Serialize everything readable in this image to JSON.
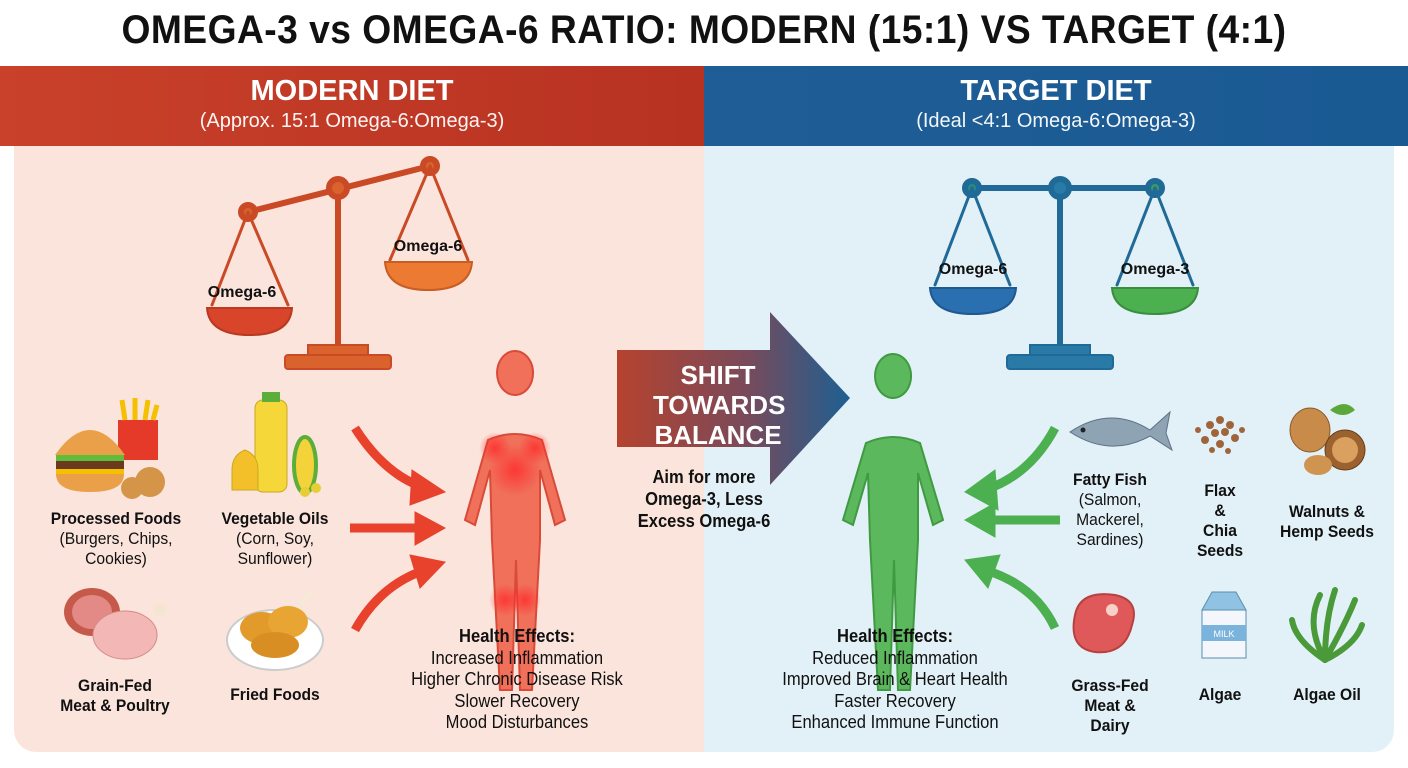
{
  "title": "OMEGA-3 vs OMEGA-6 RATIO: MODERN (15:1) VS TARGET (4:1)",
  "modern": {
    "heading": "MODERN DIET",
    "subheading": "(Approx. 15:1 Omega-6:Omega-3)",
    "color": "#c0392b",
    "scale_left_label": "Omega-6",
    "scale_right_label": "Omega-6",
    "foods": [
      {
        "name": "Processed Foods",
        "detail": "(Burgers, Chips, Cookies)",
        "icon": "burger-fries-icon"
      },
      {
        "name": "Vegetable Oils",
        "detail": "(Corn, Soy, Sunflower)",
        "icon": "oil-bottle-corn-icon"
      },
      {
        "name": "Grain-Fed Meat & Poultry",
        "detail": "",
        "icon": "ham-chicken-icon"
      },
      {
        "name": "Fried Foods",
        "detail": "",
        "icon": "fried-chicken-icon"
      }
    ],
    "effects_title": "Health Effects:",
    "effects": [
      "Increased Inflammation",
      "Higher Chronic Disease Risk",
      "Slower Recovery",
      "Mood Disturbances"
    ]
  },
  "shift": {
    "label": "SHIFT TOWARDS BALANCE",
    "note": "Aim for more Omega-3, Less Excess Omega-6"
  },
  "target": {
    "heading": "TARGET DIET",
    "subheading": "(Ideal <4:1 Omega-6:Omega-3)",
    "color": "#1f5d96",
    "scale_left_label": "Omega-6",
    "scale_right_label": "Omega-3",
    "foods": [
      {
        "name": "Fatty Fish",
        "detail": "(Salmon, Mackerel, Sardines)",
        "icon": "fish-icon"
      },
      {
        "name": "Flax & Chia Seeds",
        "detail": "",
        "icon": "seeds-icon"
      },
      {
        "name": "Walnuts & Hemp Seeds",
        "detail": "",
        "icon": "walnut-icon"
      },
      {
        "name": "Grass-Fed Meat & Dairy",
        "detail": "",
        "icon": "steak-icon"
      },
      {
        "name": "Algae",
        "detail": "",
        "icon": "milk-carton-icon",
        "carton_text": "MILK"
      },
      {
        "name": "Algae Oil",
        "detail": "",
        "icon": "seaweed-icon"
      }
    ],
    "effects_title": "Health Effects:",
    "effects": [
      "Reduced Inflammation",
      "Improved Brain & Heart Health",
      "Faster Recovery",
      "Enhanced Immune Function"
    ]
  }
}
